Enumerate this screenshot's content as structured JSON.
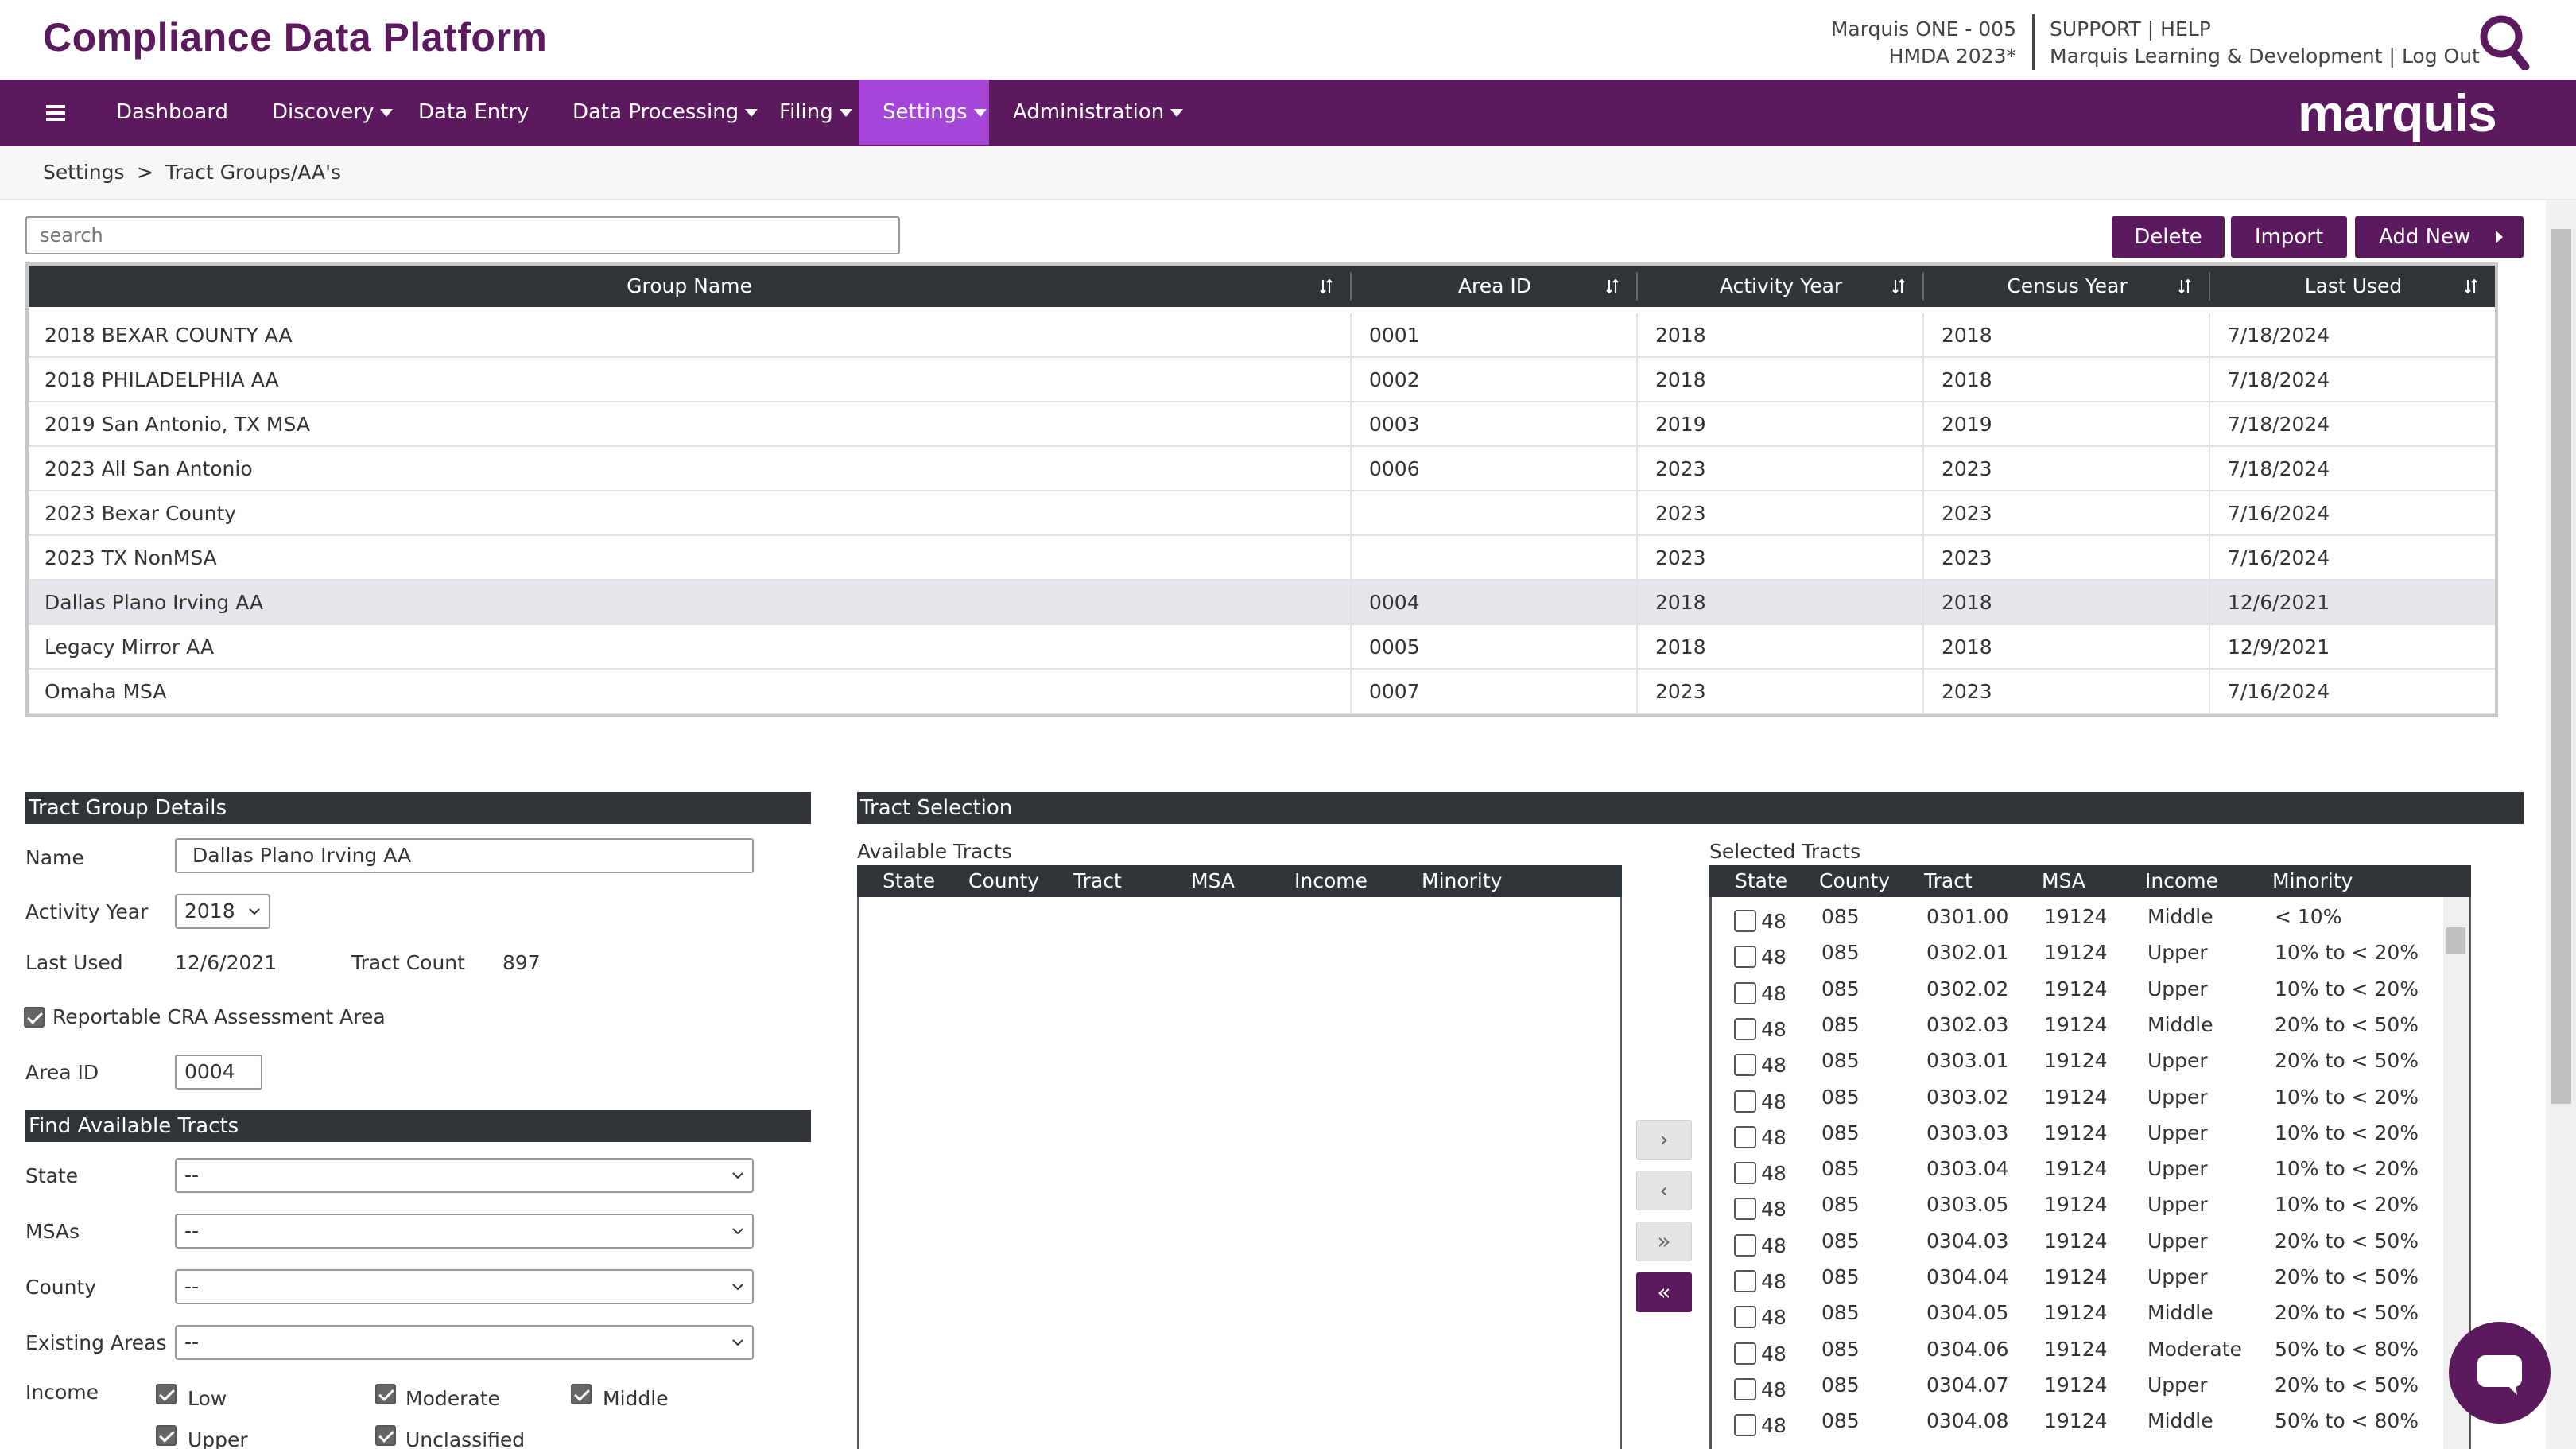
{
  "header": {
    "app_title": "Compliance Data Platform",
    "org_line1": "Marquis ONE - 005",
    "org_line2": "HMDA 2023*",
    "support": "SUPPORT",
    "help": "HELP",
    "sep": "|",
    "user": "Marquis Learning & Development",
    "logout": "Log Out",
    "brand": "marquis"
  },
  "nav": {
    "items": [
      {
        "label": "Dashboard"
      },
      {
        "label": "Discovery"
      },
      {
        "label": "Data Entry"
      },
      {
        "label": "Data Processing"
      },
      {
        "label": "Filing"
      },
      {
        "label": "Settings"
      },
      {
        "label": "Administration"
      }
    ]
  },
  "breadcrumb": {
    "root": "Settings",
    "sep": ">",
    "current": "Tract Groups/AA's"
  },
  "toolbar": {
    "search_placeholder": "search",
    "delete_label": "Delete",
    "import_label": "Import",
    "add_new_label": "Add New"
  },
  "groups_table": {
    "columns": [
      "Group Name",
      "Area ID",
      "Activity Year",
      "Census Year",
      "Last Used"
    ],
    "rows": [
      {
        "name": "2018 BEXAR COUNTY AA",
        "area_id": "0001",
        "activity_year": "2018",
        "census_year": "2018",
        "last_used": "7/18/2024"
      },
      {
        "name": "2018 PHILADELPHIA AA",
        "area_id": "0002",
        "activity_year": "2018",
        "census_year": "2018",
        "last_used": "7/18/2024"
      },
      {
        "name": "2019 San Antonio, TX MSA",
        "area_id": "0003",
        "activity_year": "2019",
        "census_year": "2019",
        "last_used": "7/18/2024"
      },
      {
        "name": "2023 All San Antonio",
        "area_id": "0006",
        "activity_year": "2023",
        "census_year": "2023",
        "last_used": "7/18/2024"
      },
      {
        "name": "2023 Bexar County",
        "area_id": "",
        "activity_year": "2023",
        "census_year": "2023",
        "last_used": "7/16/2024"
      },
      {
        "name": "2023 TX NonMSA",
        "area_id": "",
        "activity_year": "2023",
        "census_year": "2023",
        "last_used": "7/16/2024"
      },
      {
        "name": "Dallas Plano Irving AA",
        "area_id": "0004",
        "activity_year": "2018",
        "census_year": "2018",
        "last_used": "12/6/2021"
      },
      {
        "name": "Legacy Mirror AA",
        "area_id": "0005",
        "activity_year": "2018",
        "census_year": "2018",
        "last_used": "12/9/2021"
      },
      {
        "name": "Omaha MSA",
        "area_id": "0007",
        "activity_year": "2023",
        "census_year": "2023",
        "last_used": "7/16/2024"
      }
    ]
  },
  "details": {
    "section_title": "Tract Group Details",
    "name_label": "Name",
    "name_value": "Dallas Plano Irving AA",
    "activity_year_label": "Activity Year",
    "activity_year_value": "2018",
    "last_used_label": "Last Used",
    "last_used_value": "12/6/2021",
    "tract_count_label": "Tract Count",
    "tract_count_value": "897",
    "reportable_label": "Reportable CRA Assessment Area",
    "reportable_checked": true,
    "area_id_label": "Area ID",
    "area_id_value": "0004"
  },
  "find": {
    "section_title": "Find Available Tracts",
    "state_label": "State",
    "state_value": "--",
    "msas_label": "MSAs",
    "msas_value": "--",
    "county_label": "County",
    "county_value": "--",
    "existing_label": "Existing Areas",
    "existing_value": "--",
    "income_label": "Income",
    "income_options": [
      {
        "label": "Low",
        "checked": true
      },
      {
        "label": "Moderate",
        "checked": true
      },
      {
        "label": "Middle",
        "checked": true
      },
      {
        "label": "Upper",
        "checked": true
      },
      {
        "label": "Unclassified",
        "checked": true
      }
    ]
  },
  "tract_selection": {
    "section_title": "Tract Selection",
    "available_label": "Available Tracts",
    "selected_label": "Selected Tracts",
    "available_columns": [
      "State",
      "County",
      "Tract",
      "MSA",
      "Income",
      "Minority"
    ],
    "selected_columns": [
      "State",
      "County",
      "Tract",
      "MSA",
      "Income",
      "Minority"
    ],
    "move_buttons": [
      "›",
      "‹",
      "»",
      "«"
    ],
    "selected_rows": [
      {
        "state": "48",
        "county": "085",
        "tract": "0301.00",
        "msa": "19124",
        "income": "Middle",
        "minority": "< 10%"
      },
      {
        "state": "48",
        "county": "085",
        "tract": "0302.01",
        "msa": "19124",
        "income": "Upper",
        "minority": "10% to < 20%"
      },
      {
        "state": "48",
        "county": "085",
        "tract": "0302.02",
        "msa": "19124",
        "income": "Upper",
        "minority": "10% to < 20%"
      },
      {
        "state": "48",
        "county": "085",
        "tract": "0302.03",
        "msa": "19124",
        "income": "Middle",
        "minority": "20% to < 50%"
      },
      {
        "state": "48",
        "county": "085",
        "tract": "0303.01",
        "msa": "19124",
        "income": "Upper",
        "minority": "20% to < 50%"
      },
      {
        "state": "48",
        "county": "085",
        "tract": "0303.02",
        "msa": "19124",
        "income": "Upper",
        "minority": "10% to < 20%"
      },
      {
        "state": "48",
        "county": "085",
        "tract": "0303.03",
        "msa": "19124",
        "income": "Upper",
        "minority": "10% to < 20%"
      },
      {
        "state": "48",
        "county": "085",
        "tract": "0303.04",
        "msa": "19124",
        "income": "Upper",
        "minority": "10% to < 20%"
      },
      {
        "state": "48",
        "county": "085",
        "tract": "0303.05",
        "msa": "19124",
        "income": "Upper",
        "minority": "10% to < 20%"
      },
      {
        "state": "48",
        "county": "085",
        "tract": "0304.03",
        "msa": "19124",
        "income": "Upper",
        "minority": "20% to < 50%"
      },
      {
        "state": "48",
        "county": "085",
        "tract": "0304.04",
        "msa": "19124",
        "income": "Upper",
        "minority": "20% to < 50%"
      },
      {
        "state": "48",
        "county": "085",
        "tract": "0304.05",
        "msa": "19124",
        "income": "Middle",
        "minority": "20% to < 50%"
      },
      {
        "state": "48",
        "county": "085",
        "tract": "0304.06",
        "msa": "19124",
        "income": "Moderate",
        "minority": "50% to < 80%"
      },
      {
        "state": "48",
        "county": "085",
        "tract": "0304.07",
        "msa": "19124",
        "income": "Upper",
        "minority": "20% to < 50%"
      },
      {
        "state": "48",
        "county": "085",
        "tract": "0304.08",
        "msa": "19124",
        "income": "Middle",
        "minority": "50% to < 80%"
      }
    ]
  },
  "colors": {
    "brand_purple": "#5c1a5e",
    "active_nav": "#a646d8",
    "header_dark": "#2f3539"
  }
}
